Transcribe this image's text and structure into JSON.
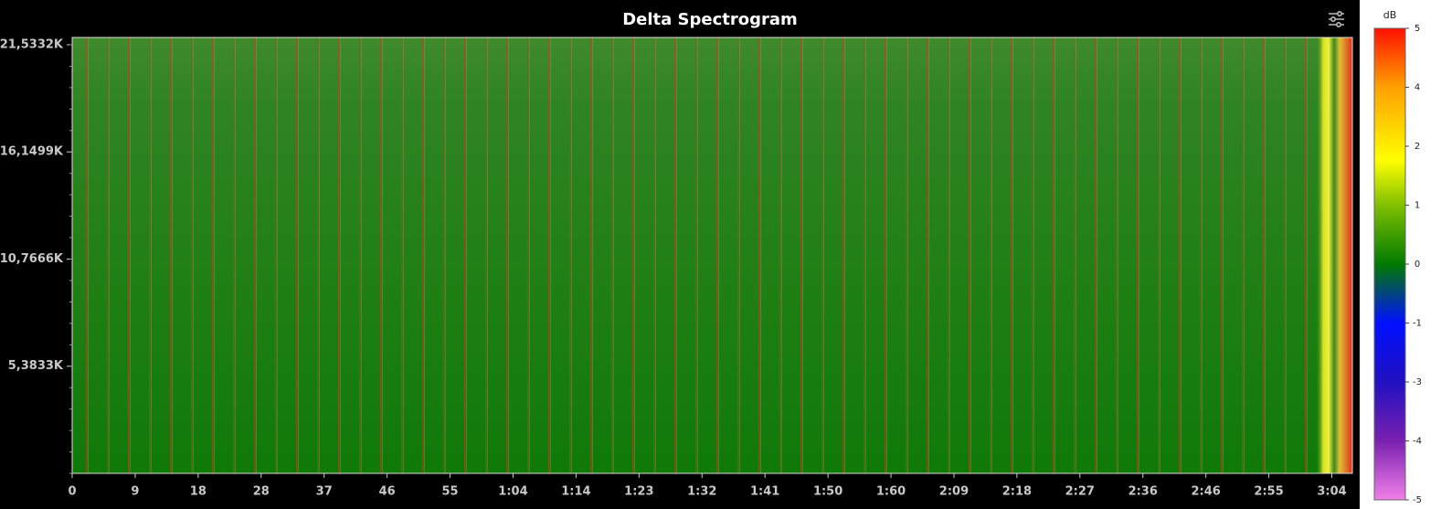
{
  "chart_data": {
    "type": "spectrogram",
    "title": "Delta Spectrogram",
    "xlim": [
      0,
      187
    ],
    "xticks": [
      {
        "value": 0,
        "label": "0"
      },
      {
        "value": 9.2,
        "label": "9"
      },
      {
        "value": 18.4,
        "label": "18"
      },
      {
        "value": 27.6,
        "label": "28"
      },
      {
        "value": 36.8,
        "label": "37"
      },
      {
        "value": 46,
        "label": "46"
      },
      {
        "value": 55.2,
        "label": "55"
      },
      {
        "value": 64.4,
        "label": "1:04"
      },
      {
        "value": 73.6,
        "label": "1:14"
      },
      {
        "value": 82.8,
        "label": "1:23"
      },
      {
        "value": 92,
        "label": "1:32"
      },
      {
        "value": 101.2,
        "label": "1:41"
      },
      {
        "value": 110.4,
        "label": "1:50"
      },
      {
        "value": 119.6,
        "label": "1:60"
      },
      {
        "value": 128.8,
        "label": "2:09"
      },
      {
        "value": 138,
        "label": "2:18"
      },
      {
        "value": 147.2,
        "label": "2:27"
      },
      {
        "value": 156.4,
        "label": "2:36"
      },
      {
        "value": 165.6,
        "label": "2:46"
      },
      {
        "value": 174.8,
        "label": "2:55"
      },
      {
        "value": 184,
        "label": "3:04"
      }
    ],
    "ylim": [
      0,
      21900
    ],
    "yticks": [
      {
        "value": 5383.3,
        "label": "5,3833K"
      },
      {
        "value": 10766.6,
        "label": "10,7666K"
      },
      {
        "value": 16149.9,
        "label": "16,1499K"
      },
      {
        "value": 21533.2,
        "label": "21,5332K"
      }
    ],
    "colorbar": {
      "label": "dB",
      "clim": [
        -5,
        5
      ],
      "ticks": [
        {
          "value": 5,
          "label": "5"
        },
        {
          "value": 3.75,
          "label": "4"
        },
        {
          "value": 2.5,
          "label": "2"
        },
        {
          "value": 1.25,
          "label": "1"
        },
        {
          "value": 0,
          "label": "0"
        },
        {
          "value": -1.25,
          "label": "-1"
        },
        {
          "value": -2.5,
          "label": "-3"
        },
        {
          "value": -3.75,
          "label": "-4"
        },
        {
          "value": -5,
          "label": "-5"
        }
      ],
      "colormap": [
        {
          "value": -5,
          "color": "#f080e8"
        },
        {
          "value": -3.75,
          "color": "#7a20b0"
        },
        {
          "value": -2.5,
          "color": "#2010c0"
        },
        {
          "value": -1.25,
          "color": "#0010ff"
        },
        {
          "value": 0,
          "color": "#007a00"
        },
        {
          "value": 1.25,
          "color": "#80c000"
        },
        {
          "value": 2.2,
          "color": "#ffff00"
        },
        {
          "value": 3.75,
          "color": "#ffa000"
        },
        {
          "value": 5,
          "color": "#ff1000"
        }
      ]
    }
  }
}
